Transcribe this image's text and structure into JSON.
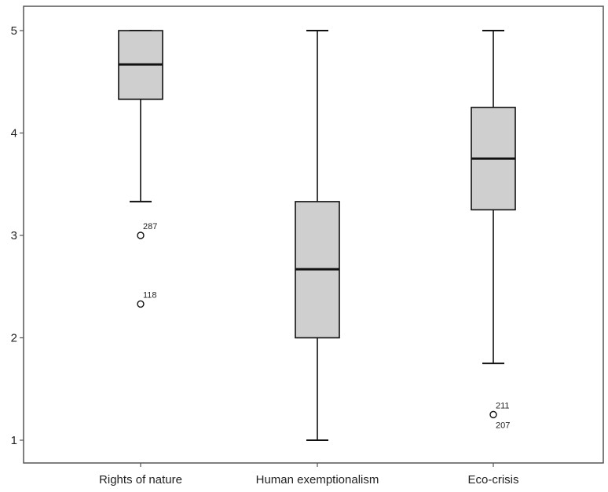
{
  "chart_data": {
    "type": "boxplot",
    "title": "",
    "xlabel": "",
    "ylabel": "",
    "ylim": [
      1,
      5
    ],
    "yticks": [
      1,
      2,
      3,
      4,
      5
    ],
    "grid": false,
    "colors": {
      "box_fill": "#cfcfcf",
      "stroke": "#111111",
      "frame": "#555555"
    },
    "categories": [
      "Rights of nature",
      "Human exemptionalism",
      "Eco-crisis"
    ],
    "boxes": [
      {
        "category": "Rights of nature",
        "whisker_low": 3.33,
        "q1": 4.33,
        "median": 4.67,
        "q3": 5.0,
        "whisker_high": 5.0,
        "outliers": [
          {
            "value": 3.0,
            "label": "287"
          },
          {
            "value": 2.33,
            "label": "118"
          }
        ]
      },
      {
        "category": "Human exemptionalism",
        "whisker_low": 1.0,
        "q1": 2.0,
        "median": 2.67,
        "q3": 3.33,
        "whisker_high": 5.0,
        "outliers": []
      },
      {
        "category": "Eco-crisis",
        "whisker_low": 1.75,
        "q1": 3.25,
        "median": 3.75,
        "q3": 4.25,
        "whisker_high": 5.0,
        "outliers": [
          {
            "value": 1.25,
            "label": "211"
          },
          {
            "value": 1.25,
            "label": "207"
          }
        ]
      }
    ]
  }
}
